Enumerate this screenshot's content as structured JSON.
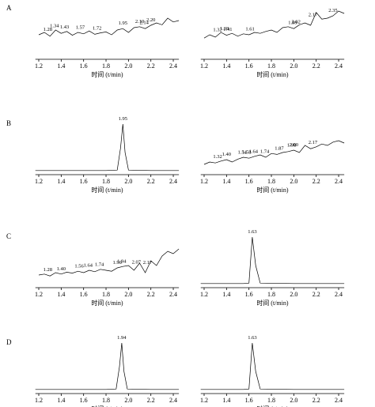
{
  "chart_data": [
    {
      "type": "line",
      "label": "A",
      "xlabel": "时间 (t/min)",
      "xlim": [
        1.17,
        2.45
      ],
      "ylim": [
        0,
        100
      ],
      "xticks": [
        1.2,
        1.4,
        1.6,
        1.8,
        {
          "value": 2,
          "label": "2.0"
        },
        2.2,
        2.4
      ],
      "x": [
        1.2,
        1.25,
        1.3,
        1.35,
        1.4,
        1.45,
        1.5,
        1.55,
        1.6,
        1.65,
        1.7,
        1.75,
        1.8,
        1.85,
        1.9,
        1.95,
        2,
        2.05,
        2.1,
        2.15,
        2.2,
        2.25,
        2.3,
        2.35,
        2.4,
        2.45
      ],
      "values": [
        45,
        50,
        42,
        55,
        48,
        52,
        44,
        50,
        47,
        53,
        46,
        49,
        51,
        45,
        55,
        58,
        50,
        60,
        62,
        58,
        65,
        70,
        66,
        80,
        72,
        75
      ],
      "peaks": [
        1.28,
        1.34,
        1.43,
        1.57,
        1.72,
        1.95,
        {
          "value": 2.1,
          "label": "2.10"
        },
        2.14,
        {
          "value": 2.2,
          "label": "2.20"
        }
      ]
    },
    {
      "type": "line",
      "xlabel": "时间 (t/min)",
      "xlim": [
        1.17,
        2.45
      ],
      "ylim": [
        0,
        100
      ],
      "xticks": [
        1.2,
        1.4,
        1.6,
        1.8,
        {
          "value": 2,
          "label": "2.0"
        },
        2.2,
        2.4
      ],
      "x": [
        1.2,
        1.25,
        1.3,
        1.35,
        1.4,
        1.45,
        1.5,
        1.55,
        1.6,
        1.65,
        1.7,
        1.75,
        1.8,
        1.85,
        1.9,
        1.95,
        2,
        2.05,
        2.1,
        2.15,
        2.2,
        2.25,
        2.3,
        2.35,
        2.4,
        2.45
      ],
      "values": [
        38,
        45,
        40,
        50,
        44,
        48,
        42,
        47,
        45,
        50,
        48,
        52,
        55,
        50,
        60,
        62,
        58,
        66,
        70,
        65,
        92,
        78,
        80,
        85,
        95,
        90
      ],
      "peaks": [
        1.32,
        1.38,
        1.41,
        1.61,
        1.99,
        2.02,
        2.17,
        2.35
      ]
    },
    {
      "type": "line",
      "label": "B",
      "xlabel": "时间 (t/min)",
      "xlim": [
        1.17,
        2.45
      ],
      "ylim": [
        0,
        100
      ],
      "xticks": [
        1.2,
        1.4,
        1.6,
        1.8,
        {
          "value": 2,
          "label": "2.0"
        },
        2.2,
        2.4
      ],
      "x": [
        1.17,
        1.4,
        1.6,
        1.8,
        1.9,
        1.93,
        1.95,
        1.97,
        2,
        2.2,
        2.45
      ],
      "values": [
        2,
        2,
        2,
        2,
        3,
        50,
        100,
        40,
        3,
        2,
        2
      ],
      "peaks": [
        1.95
      ]
    },
    {
      "type": "line",
      "xlabel": "时间 (t/min)",
      "xlim": [
        1.17,
        2.45
      ],
      "ylim": [
        0,
        100
      ],
      "xticks": [
        1.2,
        1.4,
        1.6,
        1.8,
        {
          "value": 2,
          "label": "2.0"
        },
        2.2,
        2.4
      ],
      "x": [
        1.2,
        1.25,
        1.3,
        1.35,
        1.4,
        1.45,
        1.5,
        1.55,
        1.6,
        1.65,
        1.7,
        1.75,
        1.8,
        1.85,
        1.9,
        1.95,
        2,
        2.05,
        2.1,
        2.15,
        2.2,
        2.25,
        2.3,
        2.35,
        2.4,
        2.45
      ],
      "values": [
        15,
        20,
        18,
        22,
        25,
        20,
        26,
        30,
        28,
        32,
        35,
        30,
        38,
        36,
        40,
        42,
        45,
        40,
        55,
        48,
        52,
        58,
        55,
        62,
        65,
        60
      ],
      "peaks": [
        1.32,
        {
          "value": 1.4,
          "label": "1.40"
        },
        1.54,
        1.58,
        1.64,
        1.74,
        1.87,
        1.98,
        {
          "value": 2,
          "label": "2.00"
        },
        2.17
      ]
    },
    {
      "type": "line",
      "label": "C",
      "xlabel": "时间 (t/min)",
      "xlim": [
        1.17,
        2.45
      ],
      "ylim": [
        0,
        100
      ],
      "xticks": [
        1.2,
        1.4,
        1.6,
        1.8,
        {
          "value": 2,
          "label": "2.0"
        },
        2.2,
        2.4
      ],
      "x": [
        1.2,
        1.25,
        1.3,
        1.35,
        1.4,
        1.45,
        1.5,
        1.55,
        1.6,
        1.65,
        1.7,
        1.75,
        1.8,
        1.85,
        1.9,
        1.95,
        2,
        2.05,
        2.1,
        2.15,
        2.2,
        2.25,
        2.3,
        2.35,
        2.4,
        2.45
      ],
      "values": [
        20,
        22,
        18,
        25,
        22,
        26,
        24,
        28,
        25,
        30,
        27,
        32,
        30,
        28,
        35,
        38,
        40,
        30,
        45,
        25,
        50,
        40,
        60,
        70,
        65,
        75
      ],
      "peaks": [
        1.28,
        {
          "value": 1.4,
          "label": "1.40"
        },
        1.56,
        1.64,
        1.74,
        {
          "value": 1.9,
          "label": "1.90"
        },
        1.94,
        2.07,
        2.17
      ]
    },
    {
      "type": "line",
      "xlabel": "时间 (t/min)",
      "xlim": [
        1.17,
        2.45
      ],
      "ylim": [
        0,
        100
      ],
      "xticks": [
        1.2,
        1.4,
        1.6,
        1.8,
        {
          "value": 2,
          "label": "2.0"
        },
        2.2,
        2.4
      ],
      "x": [
        1.17,
        1.4,
        1.55,
        1.6,
        1.63,
        1.66,
        1.7,
        2,
        2.45
      ],
      "values": [
        2,
        2,
        2,
        3,
        100,
        40,
        3,
        2,
        2
      ],
      "peaks": [
        1.63
      ]
    },
    {
      "type": "line",
      "label": "D",
      "xlabel": "时间 (t/min)",
      "xlim": [
        1.17,
        2.45
      ],
      "ylim": [
        0,
        100
      ],
      "xticks": [
        1.2,
        1.4,
        1.6,
        1.8,
        {
          "value": 2,
          "label": "2.0"
        },
        2.2,
        2.4
      ],
      "x": [
        1.17,
        1.4,
        1.6,
        1.8,
        1.89,
        1.92,
        1.94,
        1.96,
        1.99,
        2.2,
        2.45
      ],
      "values": [
        2,
        2,
        2,
        2,
        3,
        50,
        100,
        40,
        3,
        2,
        2
      ],
      "peaks": [
        1.94
      ]
    },
    {
      "type": "line",
      "xlabel": "时间 (t/min)",
      "xlim": [
        1.17,
        2.45
      ],
      "ylim": [
        0,
        100
      ],
      "xticks": [
        1.2,
        1.4,
        1.6,
        1.8,
        {
          "value": 2,
          "label": "2.0"
        },
        2.2,
        2.4
      ],
      "x": [
        1.17,
        1.4,
        1.55,
        1.6,
        1.63,
        1.66,
        1.7,
        2,
        2.45
      ],
      "values": [
        2,
        2,
        2,
        3,
        100,
        40,
        3,
        2,
        2
      ],
      "peaks": [
        1.63
      ]
    }
  ]
}
